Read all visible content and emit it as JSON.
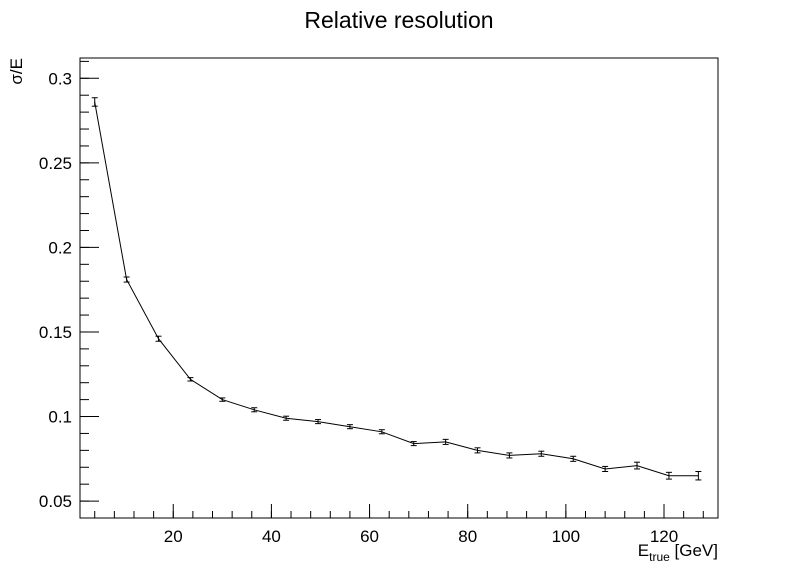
{
  "chart_data": {
    "type": "line",
    "title": "Relative resolution",
    "ylabel": "σ/E",
    "xlabel": {
      "base": "E",
      "sub": "true",
      "unit": " [GeV]"
    },
    "xlim": [
      1,
      131
    ],
    "ylim": [
      0.04,
      0.312
    ],
    "xticks": [
      20,
      40,
      60,
      80,
      100,
      120
    ],
    "xtick_labels": [
      "20",
      "40",
      "60",
      "80",
      "100",
      "120"
    ],
    "yticks": [
      0.05,
      0.1,
      0.15,
      0.2,
      0.25,
      0.3
    ],
    "ytick_labels": [
      "0.05",
      "0.1",
      "0.15",
      "0.2",
      "0.25",
      "0.3"
    ],
    "x_minor_step": 4,
    "y_minor_step": 0.01,
    "grid": false,
    "line_color": "#000000",
    "series": [
      {
        "x": [
          4,
          10.5,
          17,
          23.5,
          30,
          36.5,
          43,
          49.5,
          56,
          62.5,
          69,
          75.5,
          82,
          88.5,
          95,
          101.5,
          108,
          114.5,
          121,
          127
        ],
        "y": [
          0.286,
          0.181,
          0.146,
          0.122,
          0.11,
          0.104,
          0.099,
          0.097,
          0.094,
          0.091,
          0.084,
          0.085,
          0.08,
          0.077,
          0.078,
          0.075,
          0.069,
          0.071,
          0.065,
          0.065
        ],
        "yerr": [
          0.0025,
          0.0015,
          0.0015,
          0.001,
          0.001,
          0.0012,
          0.0012,
          0.0012,
          0.0012,
          0.0012,
          0.0012,
          0.0015,
          0.0015,
          0.0015,
          0.0015,
          0.0015,
          0.0015,
          0.002,
          0.002,
          0.0025
        ]
      }
    ]
  }
}
